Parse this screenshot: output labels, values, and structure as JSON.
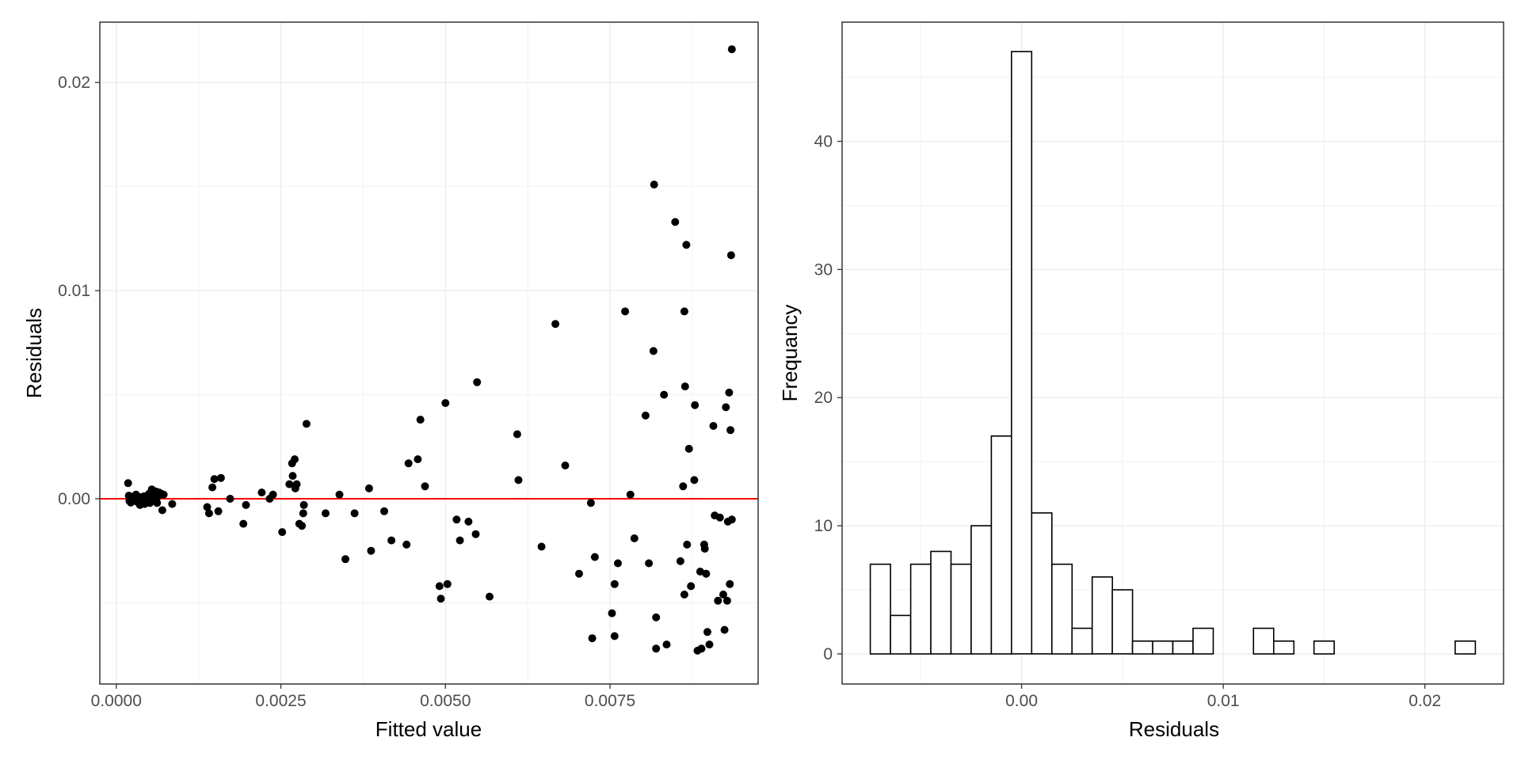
{
  "chart_data": [
    {
      "type": "scatter",
      "xlabel": "Fitted value",
      "ylabel": "Residuals",
      "xlim": [
        -0.00025,
        0.00975
      ],
      "ylim": [
        -0.0089,
        0.0229
      ],
      "x_ticks": [
        0,
        0.0025,
        0.005,
        0.0075
      ],
      "x_tick_labels": [
        "0.0000",
        "0.0025",
        "0.0050",
        "0.0075"
      ],
      "y_ticks": [
        0,
        0.01,
        0.02
      ],
      "y_tick_labels": [
        "0.00",
        "0.01",
        "0.02"
      ],
      "reference_line": {
        "y": 0,
        "color": "#ff0000"
      },
      "point_color": "#000000",
      "grid": true,
      "points": [
        [
          0.00018,
          0.00075
        ],
        [
          0.00019,
          0.00015
        ],
        [
          0.0002,
          -0.0001
        ],
        [
          0.00021,
          0.0
        ],
        [
          0.00022,
          -0.00018
        ],
        [
          0.00025,
          0.0001
        ],
        [
          0.00028,
          -5e-05
        ],
        [
          0.0003,
          0.0002
        ],
        [
          0.00032,
          -0.00015
        ],
        [
          0.00034,
          0.0
        ],
        [
          0.00035,
          8e-05
        ],
        [
          0.00036,
          -0.0003
        ],
        [
          0.00038,
          5e-05
        ],
        [
          0.0004,
          -0.0001
        ],
        [
          0.00042,
          0.00012
        ],
        [
          0.00043,
          -0.00025
        ],
        [
          0.00045,
          0.0
        ],
        [
          0.00047,
          0.00015
        ],
        [
          0.00048,
          -5e-05
        ],
        [
          0.0005,
          0.00025
        ],
        [
          0.00051,
          -0.0002
        ],
        [
          0.00052,
          0.0001
        ],
        [
          0.00054,
          0.00045
        ],
        [
          0.00055,
          -0.0001
        ],
        [
          0.00056,
          0.0002
        ],
        [
          0.00058,
          0.0
        ],
        [
          0.0006,
          0.00035
        ],
        [
          0.00062,
          -0.0002
        ],
        [
          0.00063,
          0.0001
        ],
        [
          0.00065,
          0.0003
        ],
        [
          0.00068,
          0.00025
        ],
        [
          0.0007,
          -0.00055
        ],
        [
          0.00072,
          0.0002
        ],
        [
          0.00085,
          -0.00025
        ],
        [
          0.00138,
          -0.0004
        ],
        [
          0.00141,
          -0.0007
        ],
        [
          0.00146,
          0.00055
        ],
        [
          0.00149,
          0.00095
        ],
        [
          0.00155,
          -0.0006
        ],
        [
          0.00159,
          0.001
        ],
        [
          0.00173,
          0.0
        ],
        [
          0.00193,
          -0.0012
        ],
        [
          0.00197,
          -0.0003
        ],
        [
          0.00221,
          0.0003
        ],
        [
          0.00233,
          0.0
        ],
        [
          0.00238,
          0.0002
        ],
        [
          0.00252,
          -0.0016
        ],
        [
          0.00263,
          0.0007
        ],
        [
          0.00267,
          0.0017
        ],
        [
          0.00268,
          0.0011
        ],
        [
          0.00271,
          0.0019
        ],
        [
          0.00272,
          0.0005
        ],
        [
          0.00274,
          0.0007
        ],
        [
          0.00278,
          -0.0012
        ],
        [
          0.00282,
          -0.0013
        ],
        [
          0.00284,
          -0.0007
        ],
        [
          0.00285,
          -0.0003
        ],
        [
          0.00289,
          0.0036
        ],
        [
          0.00318,
          -0.0007
        ],
        [
          0.00339,
          0.0002
        ],
        [
          0.00348,
          -0.0029
        ],
        [
          0.00362,
          -0.0007
        ],
        [
          0.00384,
          0.0005
        ],
        [
          0.00387,
          -0.0025
        ],
        [
          0.00407,
          -0.0006
        ],
        [
          0.00418,
          -0.002
        ],
        [
          0.00441,
          -0.0022
        ],
        [
          0.00444,
          0.0017
        ],
        [
          0.00458,
          0.0019
        ],
        [
          0.00462,
          0.0038
        ],
        [
          0.00469,
          0.0006
        ],
        [
          0.00491,
          -0.0042
        ],
        [
          0.00493,
          -0.0048
        ],
        [
          0.005,
          0.0046
        ],
        [
          0.00503,
          -0.0041
        ],
        [
          0.00517,
          -0.001
        ],
        [
          0.00522,
          -0.002
        ],
        [
          0.00535,
          -0.0011
        ],
        [
          0.00546,
          -0.0017
        ],
        [
          0.00548,
          0.0056
        ],
        [
          0.00567,
          -0.0047
        ],
        [
          0.00609,
          0.0031
        ],
        [
          0.00611,
          0.0009
        ],
        [
          0.00646,
          -0.0023
        ],
        [
          0.00667,
          0.0084
        ],
        [
          0.00682,
          0.0016
        ],
        [
          0.00703,
          -0.0036
        ],
        [
          0.00721,
          -0.0002
        ],
        [
          0.00723,
          -0.0067
        ],
        [
          0.00727,
          -0.0028
        ],
        [
          0.00753,
          -0.0055
        ],
        [
          0.00757,
          -0.0041
        ],
        [
          0.00757,
          -0.0066
        ],
        [
          0.00762,
          -0.0031
        ],
        [
          0.00773,
          0.009
        ],
        [
          0.00781,
          0.0002
        ],
        [
          0.00787,
          -0.0019
        ],
        [
          0.00804,
          0.004
        ],
        [
          0.00809,
          -0.0031
        ],
        [
          0.00816,
          0.0071
        ],
        [
          0.00817,
          0.0151
        ],
        [
          0.0082,
          -0.0057
        ],
        [
          0.0082,
          -0.0072
        ],
        [
          0.00832,
          0.005
        ],
        [
          0.00836,
          -0.007
        ],
        [
          0.00849,
          0.0133
        ],
        [
          0.00857,
          -0.003
        ],
        [
          0.00861,
          0.0006
        ],
        [
          0.00863,
          0.009
        ],
        [
          0.00863,
          -0.0046
        ],
        [
          0.00864,
          0.0054
        ],
        [
          0.00866,
          0.0122
        ],
        [
          0.00867,
          -0.0022
        ],
        [
          0.0087,
          0.0024
        ],
        [
          0.00873,
          -0.0042
        ],
        [
          0.00878,
          0.0009
        ],
        [
          0.00879,
          0.0045
        ],
        [
          0.00883,
          -0.0073
        ],
        [
          0.00887,
          -0.0035
        ],
        [
          0.00889,
          -0.0072
        ],
        [
          0.00893,
          -0.0022
        ],
        [
          0.00894,
          -0.0024
        ],
        [
          0.00896,
          -0.0036
        ],
        [
          0.00898,
          -0.0064
        ],
        [
          0.00901,
          -0.007
        ],
        [
          0.00907,
          0.0035
        ],
        [
          0.00909,
          -0.0008
        ],
        [
          0.00914,
          -0.0049
        ],
        [
          0.00917,
          -0.0009
        ],
        [
          0.00922,
          -0.0046
        ],
        [
          0.00924,
          -0.0063
        ],
        [
          0.00926,
          0.0044
        ],
        [
          0.00928,
          -0.0049
        ],
        [
          0.00929,
          -0.0011
        ],
        [
          0.00931,
          0.0051
        ],
        [
          0.00932,
          -0.0041
        ],
        [
          0.00933,
          0.0033
        ],
        [
          0.00934,
          0.0117
        ],
        [
          0.00935,
          -0.001
        ],
        [
          0.00935,
          0.0216
        ]
      ]
    },
    {
      "type": "bar",
      "xlabel": "Residuals",
      "ylabel": "Frequancy",
      "xlim": [
        -0.0089,
        0.0239
      ],
      "ylim": [
        -2.35,
        49.3
      ],
      "x_ticks": [
        0,
        0.01,
        0.02
      ],
      "x_tick_labels": [
        "0.00",
        "0.01",
        "0.02"
      ],
      "y_ticks": [
        0,
        10,
        20,
        30,
        40
      ],
      "y_tick_labels": [
        "0",
        "10",
        "20",
        "30",
        "40"
      ],
      "bin_start": -0.0075,
      "bin_width": 0.001,
      "counts": [
        7,
        3,
        7,
        8,
        7,
        10,
        17,
        47,
        11,
        7,
        2,
        6,
        5,
        1,
        1,
        1,
        2,
        0,
        0,
        2,
        1,
        0,
        1,
        0,
        0,
        0,
        0,
        0,
        0,
        1
      ],
      "bar_fill": "#ffffff",
      "bar_stroke": "#000000",
      "grid": true
    }
  ]
}
